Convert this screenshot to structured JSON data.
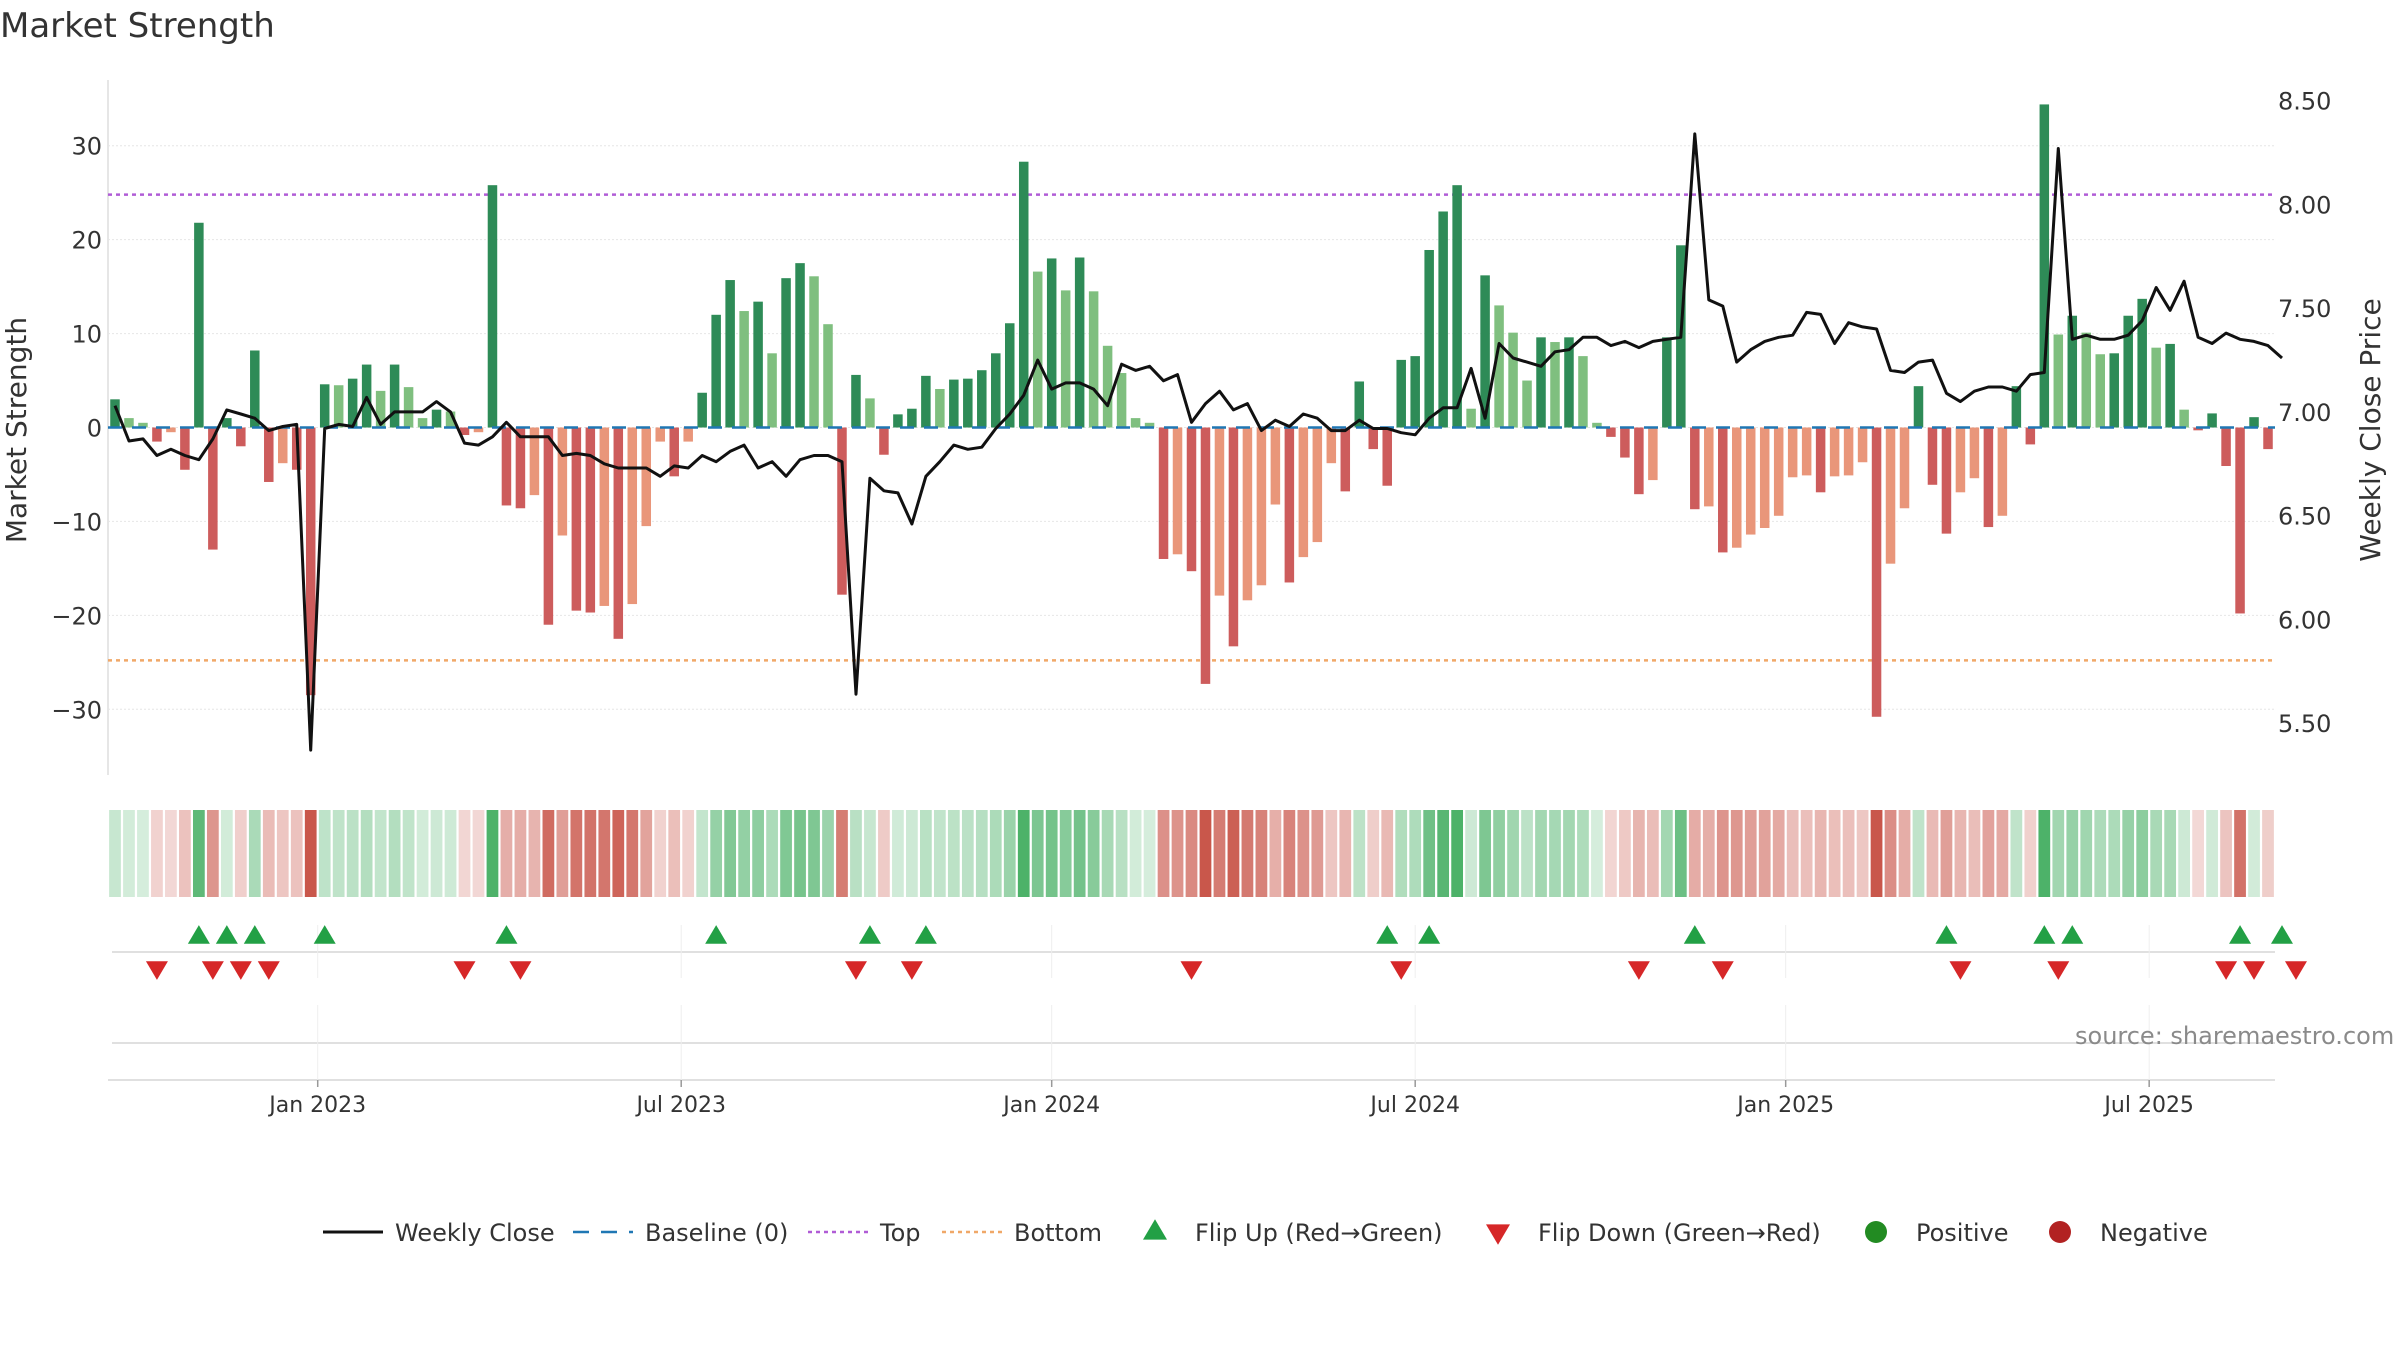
{
  "title": "Market Strength",
  "source": "source: sharemaestro.com",
  "colors": {
    "dark_green": "#2e8b57",
    "light_green": "#7fbf7f",
    "dark_red": "#cd5c5c",
    "light_red": "#e9967a",
    "price_line": "#111111",
    "baseline": "#1f77b4",
    "top": "#b05cd6",
    "bottom": "#f0a868",
    "flip_up": "#22a045",
    "flip_down": "#d62728",
    "positive": "#228b22",
    "negative": "#b22222"
  },
  "chart_data": {
    "type": "bar",
    "title": "Market Strength",
    "ylabel": "Market Strength",
    "y2label": "Weekly Close Price",
    "ylim": [
      -37,
      37
    ],
    "y2lim": [
      5.25,
      8.6
    ],
    "yticks": [
      "30",
      "20",
      "10",
      "0",
      "−10",
      "−20",
      "−30"
    ],
    "yticks_values": [
      30,
      20,
      10,
      0,
      -10,
      -20,
      -30
    ],
    "y2ticks": [
      "8.50",
      "8.00",
      "7.50",
      "7.00",
      "6.50",
      "6.00",
      "5.50"
    ],
    "y2ticks_values": [
      8.5,
      8.0,
      7.5,
      7.0,
      6.5,
      6.0,
      5.5
    ],
    "xticks": [
      "Jan 2023",
      "Jul 2023",
      "Jan 2024",
      "Jul 2024",
      "Jan 2025",
      "Jul 2025"
    ],
    "xticks_index": [
      15,
      41,
      67.5,
      93.5,
      120,
      146
    ],
    "top_level": 24.8,
    "bottom_level": -24.8,
    "values": [
      3,
      1,
      0.5,
      -1.5,
      -0.5,
      -4.5,
      21.8,
      -13,
      1,
      -2,
      8.2,
      -5.8,
      -3.8,
      -4.5,
      -28.5,
      4.6,
      4.5,
      5.2,
      6.7,
      3.9,
      6.7,
      4.3,
      1,
      1.9,
      1.7,
      -0.8,
      -0.5,
      25.8,
      -8.3,
      -8.6,
      -7.2,
      -21,
      -11.5,
      -19.5,
      -19.7,
      -19,
      -22.5,
      -18.8,
      -10.5,
      -1.5,
      -5.2,
      -1.5,
      3.7,
      12,
      15.7,
      12.4,
      13.4,
      7.9,
      15.9,
      17.5,
      16.1,
      11,
      -17.8,
      5.6,
      3.1,
      -2.9,
      1.4,
      2,
      5.5,
      4.1,
      5.1,
      5.2,
      6.1,
      7.9,
      11.1,
      28.3,
      16.6,
      18,
      14.6,
      18.1,
      14.5,
      8.7,
      5.8,
      1,
      0.5,
      -14,
      -13.5,
      -15.3,
      -27.3,
      -17.9,
      -23.3,
      -18.4,
      -16.8,
      -8.2,
      -16.5,
      -13.8,
      -12.2,
      -3.8,
      -6.8,
      4.9,
      -2.3,
      -6.2,
      7.2,
      7.6,
      18.9,
      23,
      25.8,
      2,
      16.2,
      13,
      10.1,
      5,
      9.6,
      9.1,
      9.6,
      7.6,
      0.5,
      -1,
      -3.2,
      -7.1,
      -5.6,
      9.6,
      19.4,
      -8.7,
      -8.4,
      -13.3,
      -12.8,
      -11.4,
      -10.7,
      -9.4,
      -5.3,
      -5.1,
      -6.9,
      -5.2,
      -5.1,
      -3.7,
      -30.8,
      -14.5,
      -8.6,
      4.4,
      -6.1,
      -11.3,
      -6.9,
      -5.4,
      -10.6,
      -9.4,
      4.4,
      -1.8,
      34.4,
      9.9,
      11.9,
      10.1,
      7.8,
      7.9,
      11.9,
      13.7,
      8.5,
      8.9,
      1.9,
      -0.3,
      1.5,
      -4.1,
      -19.8,
      1.1,
      -2.3
    ],
    "weekly_close": [
      7.03,
      6.86,
      6.87,
      6.79,
      6.82,
      6.79,
      6.77,
      6.87,
      7.01,
      6.99,
      6.97,
      6.91,
      6.93,
      6.94,
      5.37,
      6.92,
      6.94,
      6.93,
      7.07,
      6.94,
      7.0,
      7.0,
      7.0,
      7.05,
      7.0,
      6.85,
      6.84,
      6.88,
      6.95,
      6.88,
      6.88,
      6.88,
      6.79,
      6.8,
      6.79,
      6.75,
      6.73,
      6.73,
      6.73,
      6.69,
      6.74,
      6.73,
      6.79,
      6.76,
      6.81,
      6.84,
      6.73,
      6.76,
      6.69,
      6.77,
      6.79,
      6.79,
      6.76,
      5.64,
      6.68,
      6.62,
      6.61,
      6.46,
      6.69,
      6.76,
      6.84,
      6.82,
      6.83,
      6.92,
      6.99,
      7.08,
      7.25,
      7.11,
      7.14,
      7.14,
      7.11,
      7.03,
      7.23,
      7.2,
      7.22,
      7.15,
      7.18,
      6.95,
      7.04,
      7.1,
      7.01,
      7.04,
      6.91,
      6.96,
      6.93,
      6.99,
      6.97,
      6.91,
      6.91,
      6.96,
      6.92,
      6.92,
      6.9,
      6.89,
      6.97,
      7.02,
      7.02,
      7.21,
      6.97,
      7.33,
      7.26,
      7.24,
      7.22,
      7.29,
      7.3,
      7.36,
      7.36,
      7.32,
      7.34,
      7.31,
      7.34,
      7.35,
      7.36,
      8.34,
      7.54,
      7.51,
      7.24,
      7.3,
      7.34,
      7.36,
      7.37,
      7.48,
      7.47,
      7.33,
      7.43,
      7.41,
      7.4,
      7.2,
      7.19,
      7.24,
      7.25,
      7.09,
      7.05,
      7.1,
      7.12,
      7.12,
      7.1,
      7.18,
      7.19,
      8.27,
      7.35,
      7.37,
      7.35,
      7.35,
      7.37,
      7.44,
      7.6,
      7.49,
      7.63,
      7.36,
      7.33,
      7.38,
      7.35,
      7.34,
      7.32,
      7.26
    ],
    "flip_up_index": [
      6,
      8,
      10,
      15,
      28,
      43,
      54,
      58,
      91,
      94,
      113,
      131,
      138,
      140,
      152,
      155
    ],
    "flip_down_index": [
      3,
      7,
      9,
      11,
      25,
      29,
      53,
      57,
      77,
      92,
      109,
      115,
      132,
      139,
      151,
      153,
      156
    ],
    "legend": [
      "Weekly Close",
      "Baseline (0)",
      "Top",
      "Bottom",
      "Flip Up (Red→Green)",
      "Flip Down (Green→Red)",
      "Positive",
      "Negative"
    ]
  }
}
